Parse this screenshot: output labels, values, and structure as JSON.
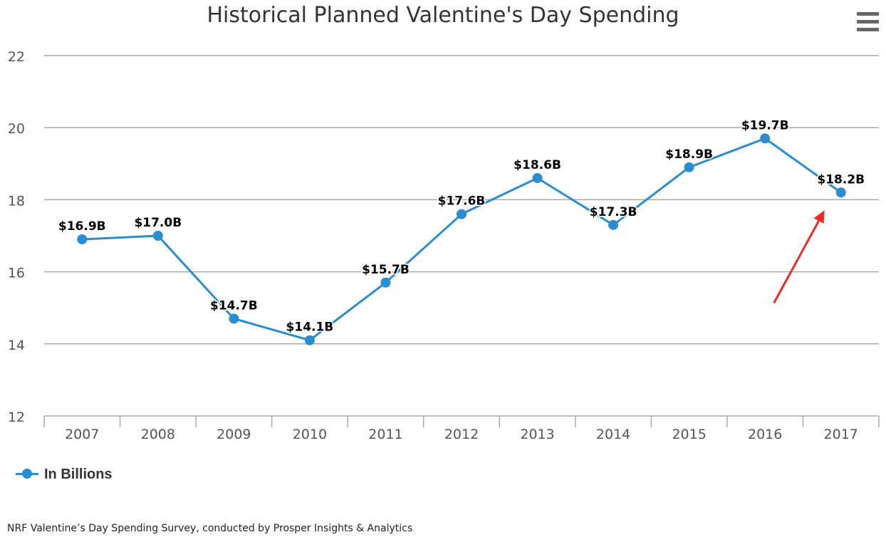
{
  "chart_data": {
    "type": "line",
    "title": "Historical Planned Valentine's Day Spending",
    "categories": [
      "2007",
      "2008",
      "2009",
      "2010",
      "2011",
      "2012",
      "2013",
      "2014",
      "2015",
      "2016",
      "2017"
    ],
    "series": [
      {
        "name": "In Billions",
        "color": "#2b8ccf",
        "values": [
          16.9,
          17.0,
          14.7,
          14.1,
          15.7,
          17.6,
          18.6,
          17.3,
          18.9,
          19.7,
          18.2
        ],
        "labels": [
          "$16.9B",
          "$17.0B",
          "$14.7B",
          "$14.1B",
          "$15.7B",
          "$17.6B",
          "$18.6B",
          "$17.3B",
          "$18.9B",
          "$19.7B",
          "$18.2B"
        ]
      }
    ],
    "ylim": [
      12,
      22
    ],
    "yticks": [
      "12",
      "14",
      "16",
      "18",
      "20",
      "22"
    ],
    "xlabel": "",
    "ylabel": "",
    "grid": true,
    "legend": "bottom-left",
    "annotation": {
      "type": "arrow",
      "color": "#ee2a24",
      "points_to": "2017"
    }
  },
  "menu": {
    "icon": "hamburger-menu-icon"
  },
  "credits": "NRF Valentine’s Day Spending Survey, conducted by Prosper Insights & Analytics"
}
